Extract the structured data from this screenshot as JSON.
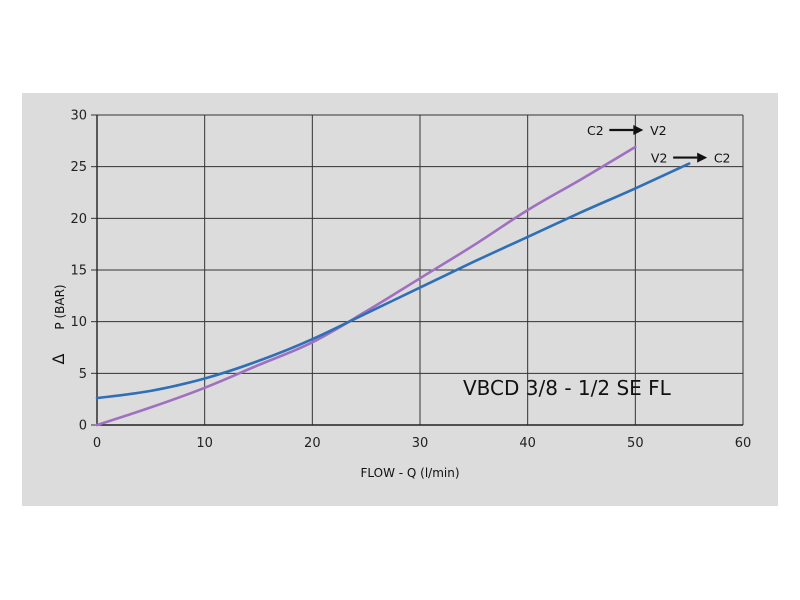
{
  "chart_data": {
    "type": "line",
    "xlabel": "FLOW - Q (l/min)",
    "ylabel": "P (BAR)",
    "ylabel_symbol": "Δ",
    "xlim": [
      0,
      60
    ],
    "ylim": [
      0,
      30
    ],
    "xticks": [
      0,
      10,
      20,
      30,
      40,
      50,
      60
    ],
    "yticks": [
      0,
      5,
      10,
      15,
      20,
      25,
      30
    ],
    "grid": true,
    "annotation": "VBCD 3/8 - 1/2 SE FL",
    "series": [
      {
        "from": "C2",
        "to": "V2",
        "color": "#a070c0",
        "x": [
          0,
          5,
          10,
          15,
          20,
          25,
          30,
          35,
          40,
          45,
          50
        ],
        "y": [
          0,
          1.7,
          3.6,
          5.8,
          8.0,
          11.0,
          14.2,
          17.4,
          20.8,
          23.8,
          26.9
        ]
      },
      {
        "from": "V2",
        "to": "C2",
        "color": "#2f6fb8",
        "x": [
          0,
          5,
          10,
          15,
          20,
          25,
          30,
          35,
          40,
          45,
          50,
          55
        ],
        "y": [
          2.6,
          3.3,
          4.5,
          6.2,
          8.3,
          10.8,
          13.3,
          15.8,
          18.2,
          20.6,
          22.9,
          25.3
        ]
      }
    ]
  }
}
